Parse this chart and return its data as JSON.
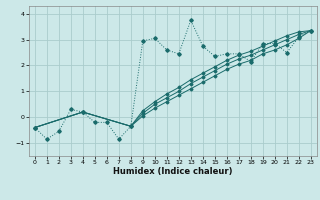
{
  "title": "",
  "xlabel": "Humidex (Indice chaleur)",
  "bg_color": "#cce8e8",
  "grid_color": "#aacccc",
  "line_color": "#1a6b6b",
  "xlim": [
    -0.5,
    23.5
  ],
  "ylim": [
    -1.5,
    4.3
  ],
  "xticks": [
    0,
    1,
    2,
    3,
    4,
    5,
    6,
    7,
    8,
    9,
    10,
    11,
    12,
    13,
    14,
    15,
    16,
    17,
    18,
    19,
    20,
    21,
    22,
    23
  ],
  "yticks": [
    -1,
    0,
    1,
    2,
    3,
    4
  ],
  "series1_x": [
    0,
    1,
    2,
    3,
    4,
    5,
    6,
    7,
    8,
    9,
    10,
    11,
    12,
    13,
    14,
    15,
    16,
    17,
    18,
    19,
    20,
    21,
    22,
    23
  ],
  "series1_y": [
    -0.4,
    -0.85,
    -0.55,
    0.3,
    0.2,
    -0.2,
    -0.2,
    -0.85,
    -0.35,
    2.95,
    3.05,
    2.6,
    2.45,
    3.75,
    2.75,
    2.35,
    2.45,
    2.45,
    2.15,
    2.85,
    2.85,
    2.5,
    3.1,
    3.35
  ],
  "series2_x": [
    0,
    4,
    8,
    9,
    10,
    11,
    12,
    13,
    14,
    15,
    16,
    17,
    18,
    19,
    20,
    21,
    22,
    23
  ],
  "series2_y": [
    -0.4,
    0.2,
    -0.35,
    0.05,
    0.35,
    0.6,
    0.85,
    1.1,
    1.35,
    1.6,
    1.85,
    2.05,
    2.2,
    2.45,
    2.6,
    2.8,
    3.05,
    3.35
  ],
  "series3_x": [
    0,
    4,
    8,
    9,
    10,
    11,
    12,
    13,
    14,
    15,
    16,
    17,
    18,
    19,
    20,
    21,
    22,
    23
  ],
  "series3_y": [
    -0.4,
    0.2,
    -0.35,
    0.15,
    0.5,
    0.75,
    1.0,
    1.3,
    1.55,
    1.8,
    2.05,
    2.25,
    2.4,
    2.6,
    2.8,
    3.0,
    3.2,
    3.35
  ],
  "series4_x": [
    0,
    4,
    8,
    9,
    10,
    11,
    12,
    13,
    14,
    15,
    16,
    17,
    18,
    19,
    20,
    21,
    22,
    23
  ],
  "series4_y": [
    -0.4,
    0.2,
    -0.35,
    0.25,
    0.6,
    0.9,
    1.15,
    1.45,
    1.7,
    1.95,
    2.2,
    2.4,
    2.55,
    2.75,
    2.95,
    3.15,
    3.3,
    3.35
  ]
}
